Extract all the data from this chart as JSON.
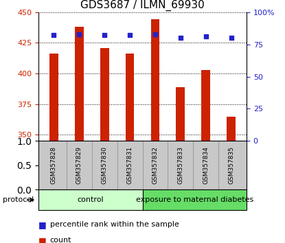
{
  "title": "GDS3687 / ILMN_69930",
  "samples": [
    "GSM357828",
    "GSM357829",
    "GSM357830",
    "GSM357831",
    "GSM357832",
    "GSM357833",
    "GSM357834",
    "GSM357835"
  ],
  "counts": [
    416,
    438,
    421,
    416,
    444,
    389,
    403,
    365
  ],
  "percentile_ranks": [
    82,
    83,
    82,
    82,
    83,
    80,
    81,
    80
  ],
  "ylim_left": [
    345,
    450
  ],
  "ylim_right": [
    0,
    100
  ],
  "yticks_left": [
    350,
    375,
    400,
    425,
    450
  ],
  "yticks_right": [
    0,
    25,
    50,
    75,
    100
  ],
  "bar_color": "#cc2200",
  "dot_color": "#2222cc",
  "bar_bottom": 345,
  "groups": [
    {
      "label": "control",
      "start": 0,
      "end": 4,
      "color": "#ccffcc"
    },
    {
      "label": "exposure to maternal diabetes",
      "start": 4,
      "end": 8,
      "color": "#66dd66"
    }
  ],
  "protocol_label": "protocol",
  "legend_items": [
    {
      "color": "#cc2200",
      "label": "count"
    },
    {
      "color": "#2222cc",
      "label": "percentile rank within the sample"
    }
  ],
  "background_color": "#ffffff",
  "tick_label_area_color": "#c8c8c8",
  "title_fontsize": 11,
  "tick_fontsize": 8,
  "sample_fontsize": 6.5,
  "legend_fontsize": 8,
  "group_fontsize": 8
}
